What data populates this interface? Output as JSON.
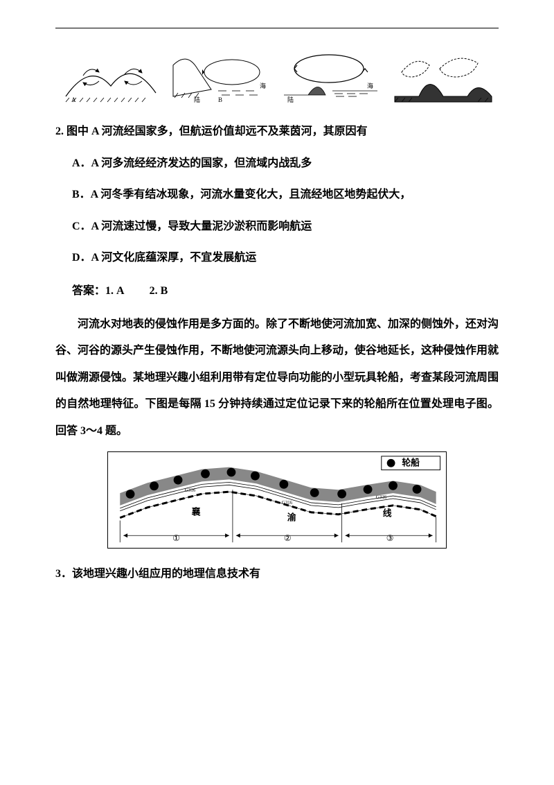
{
  "top_diagrams": {
    "labels": {
      "a_left": "A",
      "b_mid": "B",
      "land": "陆",
      "sea": "海"
    }
  },
  "question2": {
    "stem": "2. 图中 A 河流经国家多，但航运价值却远不及莱茵河，其原因有",
    "options": {
      "A": "A．A 河多流经经济发达的国家，但流域内战乱多",
      "B": "B．A 河冬季有结冰现象，河流水量变化大，且流经地区地势起伏大，",
      "C": "C．A 河流速过慢，导致大量泥沙淤积而影响航运",
      "D": "D．A 河文化底蕴深厚，不宜发展航运"
    }
  },
  "answers": {
    "label": "答案：",
    "a1": "1. A",
    "a2": "2. B"
  },
  "passage": "河流水对地表的侵蚀作用是多方面的。除了不断地使河流加宽、加深的侧蚀外，还对沟谷、河谷的源头产生侵蚀作用，不断地使河流源头向上移动，使谷地延长，这种侵蚀作用就叫做溯源侵蚀。某地理兴趣小组利用带有定位导向功能的小型玩具轮船，考查某段河流周围的自然地理特征。下图是每隔 15 分钟持续通过定位记录下来的轮船所在位置处理电子图。回答 3～4 题。",
  "figure2": {
    "legend_label": "轮船",
    "road_label": "G316",
    "text_chars": [
      "襄",
      "渝",
      "线"
    ],
    "segments": [
      "①",
      "②",
      "③"
    ],
    "colors": {
      "river": "#888888",
      "border": "#000000",
      "dot": "#000000"
    },
    "boat_positions_x": [
      30,
      65,
      100,
      140,
      178,
      213,
      255,
      300,
      340,
      378,
      415,
      450
    ],
    "river_top_y": [
      60,
      45,
      35,
      25,
      22,
      28,
      40,
      52,
      55,
      48,
      42,
      48,
      58
    ],
    "river_bot_y": [
      78,
      63,
      53,
      43,
      40,
      46,
      58,
      70,
      73,
      66,
      60,
      66,
      76
    ]
  },
  "question3": {
    "stem": "3．该地理兴趣小组应用的地理信息技术有"
  },
  "styles": {
    "page_bg": "#ffffff",
    "text_color": "#000000",
    "font_size_body": 16,
    "font_weight": "bold",
    "line_height_passage": 2.4
  }
}
